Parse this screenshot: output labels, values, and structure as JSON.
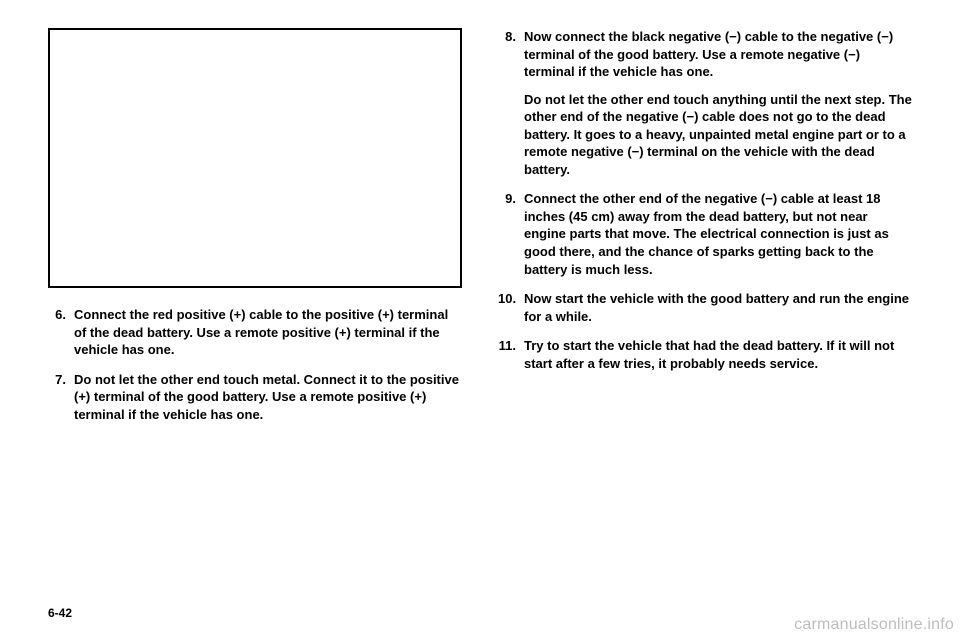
{
  "page_number": "6-42",
  "watermark": "carmanualsonline.info",
  "left_steps": [
    {
      "n": "6.",
      "text": "Connect the red positive (+) cable to the positive (+) terminal of the dead battery. Use a remote positive (+) terminal if the vehicle has one."
    },
    {
      "n": "7.",
      "text": "Do not let the other end touch metal. Connect it to the positive (+) terminal of the good battery. Use a remote positive (+) terminal if the vehicle has one."
    }
  ],
  "right_steps": [
    {
      "n": "8.",
      "text": "Now connect the black negative (−) cable to the negative (−) terminal of the good battery. Use a remote negative (−) terminal if the vehicle has one.",
      "text2": "Do not let the other end touch anything until the next step. The other end of the negative (−) cable does not go to the dead battery. It goes to a heavy, unpainted metal engine part or to a remote negative (−) terminal on the vehicle with the dead battery."
    },
    {
      "n": "9.",
      "text": "Connect the other end of the negative (−) cable at least 18 inches (45 cm) away from the dead battery, but not near engine parts that move. The electrical connection is just as good there, and the chance of sparks getting back to the battery is much less."
    },
    {
      "n": "10.",
      "text": "Now start the vehicle with the good battery and run the engine for a while."
    },
    {
      "n": "11.",
      "text": "Try to start the vehicle that had the dead battery. If it will not start after a few tries, it probably needs service."
    }
  ]
}
